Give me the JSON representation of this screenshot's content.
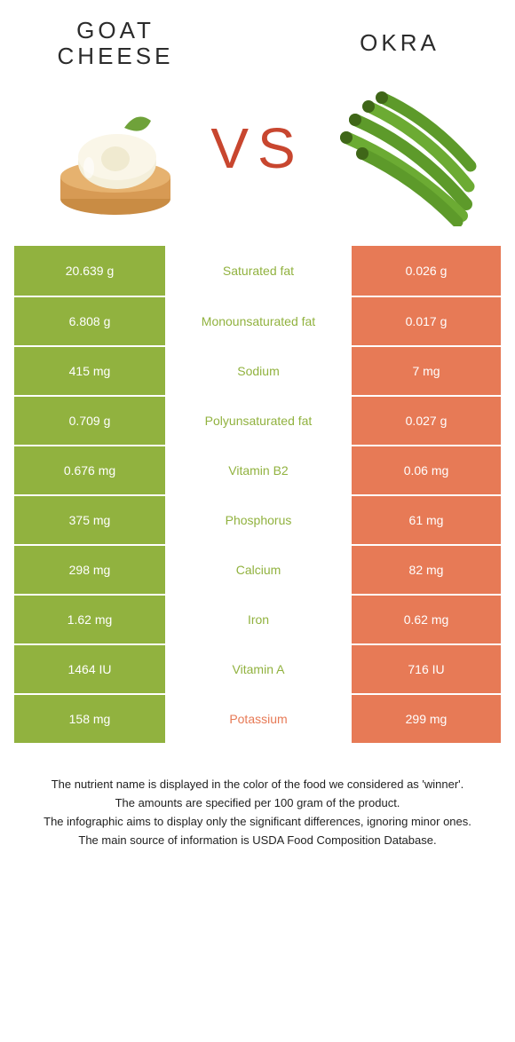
{
  "colors": {
    "left": "#91b23f",
    "right": "#e77a56",
    "vs": "#c8462f",
    "title": "#2b2b2b"
  },
  "foods": {
    "left": {
      "title": "GOAT\nCHEESE"
    },
    "right": {
      "title": "OKRA"
    }
  },
  "vs_label": "VS",
  "rows": [
    {
      "label": "Saturated fat",
      "left": "20.639 g",
      "right": "0.026 g",
      "winner": "left"
    },
    {
      "label": "Monounsaturated fat",
      "left": "6.808 g",
      "right": "0.017 g",
      "winner": "left"
    },
    {
      "label": "Sodium",
      "left": "415 mg",
      "right": "7 mg",
      "winner": "left"
    },
    {
      "label": "Polyunsaturated fat",
      "left": "0.709 g",
      "right": "0.027 g",
      "winner": "left"
    },
    {
      "label": "Vitamin B2",
      "left": "0.676 mg",
      "right": "0.06 mg",
      "winner": "left"
    },
    {
      "label": "Phosphorus",
      "left": "375 mg",
      "right": "61 mg",
      "winner": "left"
    },
    {
      "label": "Calcium",
      "left": "298 mg",
      "right": "82 mg",
      "winner": "left"
    },
    {
      "label": "Iron",
      "left": "1.62 mg",
      "right": "0.62 mg",
      "winner": "left"
    },
    {
      "label": "Vitamin A",
      "left": "1464 IU",
      "right": "716 IU",
      "winner": "left"
    },
    {
      "label": "Potassium",
      "left": "158 mg",
      "right": "299 mg",
      "winner": "right"
    }
  ],
  "footnote": [
    "The nutrient name is displayed in the color of the food we considered as 'winner'.",
    "The amounts are specified per 100 gram of the product.",
    "The infographic aims to display only the significant differences, ignoring minor ones.",
    "The main source of information is USDA Food Composition Database."
  ]
}
